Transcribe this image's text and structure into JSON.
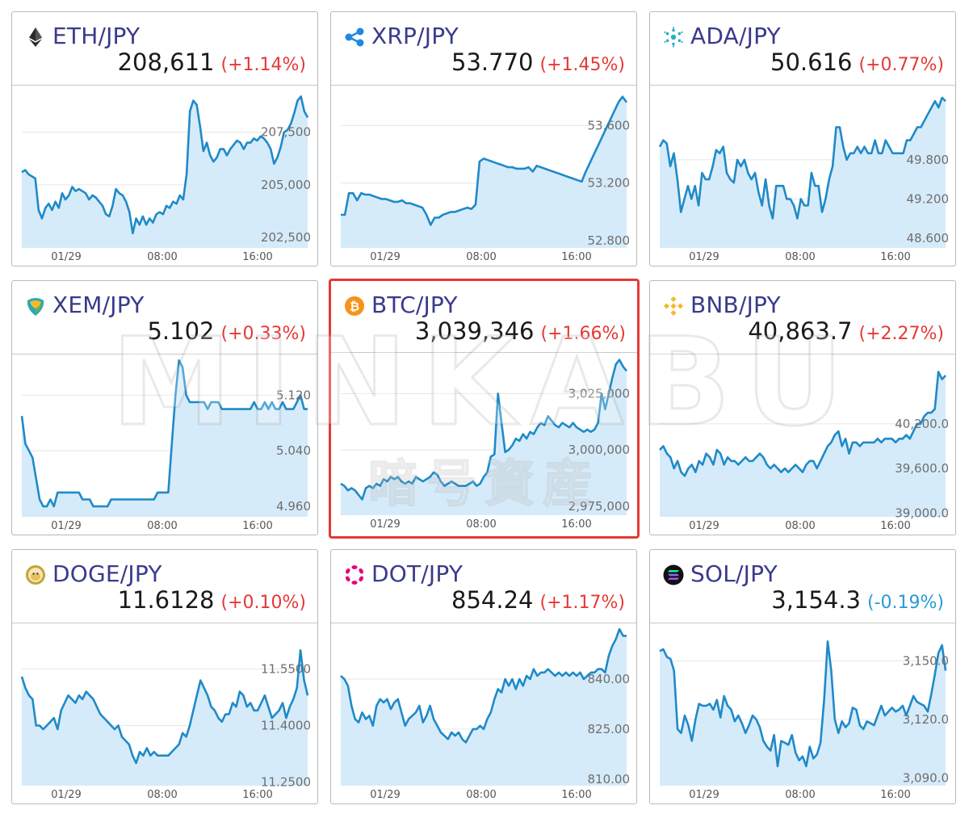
{
  "x_labels": [
    "01/29",
    "08:00",
    "16:00"
  ],
  "watermark": {
    "line1": "MINKABU",
    "line2": "暗号資産"
  },
  "colors": {
    "accent": "#3a3a8c",
    "line": "#1f8ac8",
    "fill": "#d6ebfa",
    "up": "#e53935",
    "down": "#2a9ad6",
    "highlight": "#e53935"
  },
  "chart_data": [
    {
      "type": "area",
      "pair": "ETH/JPY",
      "icon": "eth-icon",
      "price": "208,611",
      "change": "(+1.14%)",
      "direction": "up",
      "ylim": [
        202000,
        209600
      ],
      "yticks": [
        202500,
        205000,
        207500
      ],
      "ytick_labels": [
        "202,500",
        "205,000",
        "207,500"
      ],
      "values": [
        205600,
        205700,
        205500,
        205400,
        205300,
        203800,
        203400,
        203900,
        204100,
        203800,
        204200,
        203900,
        204600,
        204300,
        204500,
        204900,
        204700,
        204800,
        204700,
        204600,
        204300,
        204500,
        204400,
        204200,
        204000,
        203600,
        203500,
        204000,
        204800,
        204600,
        204500,
        204200,
        203700,
        202700,
        203400,
        203100,
        203500,
        203100,
        203400,
        203200,
        203600,
        203700,
        203600,
        204000,
        203900,
        204200,
        204100,
        204500,
        204300,
        205500,
        208500,
        209000,
        208800,
        207800,
        206600,
        207000,
        206400,
        206100,
        206300,
        206700,
        206700,
        206400,
        206700,
        206900,
        207100,
        207000,
        206700,
        207000,
        207000,
        207200,
        207100,
        207300,
        207200,
        207000,
        206700,
        206000,
        206300,
        206800,
        207500,
        207600,
        207900,
        208400,
        209000,
        209200,
        208500,
        208200
      ]
    },
    {
      "type": "area",
      "pair": "XRP/JPY",
      "icon": "xrp-icon",
      "price": "53.770",
      "change": "(+1.45%)",
      "direction": "up",
      "ylim": [
        52.75,
        53.86
      ],
      "yticks": [
        52.8,
        53.2,
        53.6
      ],
      "ytick_labels": [
        "52.800",
        "53.200",
        "53.600"
      ],
      "values": [
        52.98,
        52.98,
        53.13,
        53.13,
        53.08,
        53.13,
        53.12,
        53.12,
        53.11,
        53.1,
        53.09,
        53.09,
        53.08,
        53.07,
        53.07,
        53.08,
        53.06,
        53.06,
        53.05,
        53.04,
        53.03,
        52.98,
        52.91,
        52.96,
        52.96,
        52.98,
        52.99,
        53.0,
        53.0,
        53.01,
        53.02,
        53.03,
        53.02,
        53.05,
        53.35,
        53.37,
        53.36,
        53.35,
        53.34,
        53.33,
        53.32,
        53.31,
        53.31,
        53.3,
        53.3,
        53.3,
        53.31,
        53.28,
        53.32,
        53.31,
        53.3,
        53.29,
        53.28,
        53.27,
        53.26,
        53.25,
        53.24,
        53.23,
        53.22,
        53.21,
        53.28,
        53.34,
        53.4,
        53.46,
        53.52,
        53.58,
        53.64,
        53.7,
        53.76,
        53.8,
        53.76
      ]
    },
    {
      "type": "area",
      "pair": "ADA/JPY",
      "icon": "ada-icon",
      "price": "50.616",
      "change": "(+0.77%)",
      "direction": "up",
      "ylim": [
        48.45,
        50.9
      ],
      "yticks": [
        48.6,
        49.2,
        49.8
      ],
      "ytick_labels": [
        "48.600",
        "49.200",
        "49.800"
      ],
      "values": [
        50.0,
        50.1,
        50.05,
        49.7,
        49.9,
        49.5,
        49.0,
        49.2,
        49.4,
        49.2,
        49.4,
        49.1,
        49.6,
        49.5,
        49.5,
        49.7,
        49.95,
        49.9,
        50.0,
        49.6,
        49.5,
        49.45,
        49.8,
        49.7,
        49.8,
        49.6,
        49.5,
        49.6,
        49.3,
        49.1,
        49.5,
        49.1,
        48.9,
        49.4,
        49.4,
        49.4,
        49.2,
        49.2,
        49.1,
        48.9,
        49.2,
        49.1,
        49.1,
        49.6,
        49.4,
        49.4,
        49.0,
        49.2,
        49.5,
        49.7,
        50.3,
        50.3,
        50.0,
        49.8,
        49.9,
        49.9,
        50.0,
        49.9,
        50.0,
        49.9,
        49.9,
        50.1,
        49.9,
        49.9,
        50.1,
        50.0,
        49.9,
        49.9,
        49.9,
        49.9,
        50.1,
        50.1,
        50.2,
        50.3,
        50.3,
        50.4,
        50.5,
        50.6,
        50.7,
        50.6,
        50.75,
        50.7
      ]
    },
    {
      "type": "area",
      "pair": "XEM/JPY",
      "icon": "xem-icon",
      "price": "5.102",
      "change": "(+0.33%)",
      "direction": "up",
      "ylim": [
        4.945,
        5.175
      ],
      "yticks": [
        4.96,
        5.04,
        5.12
      ],
      "ytick_labels": [
        "4.960",
        "5.040",
        "5.120"
      ],
      "values": [
        5.09,
        5.05,
        5.04,
        5.03,
        5.0,
        4.97,
        4.96,
        4.96,
        4.97,
        4.96,
        4.98,
        4.98,
        4.98,
        4.98,
        4.98,
        4.98,
        4.98,
        4.97,
        4.97,
        4.97,
        4.96,
        4.96,
        4.96,
        4.96,
        4.96,
        4.97,
        4.97,
        4.97,
        4.97,
        4.97,
        4.97,
        4.97,
        4.97,
        4.97,
        4.97,
        4.97,
        4.97,
        4.97,
        4.98,
        4.98,
        4.98,
        4.98,
        5.05,
        5.12,
        5.17,
        5.16,
        5.12,
        5.11,
        5.11,
        5.11,
        5.11,
        5.11,
        5.1,
        5.11,
        5.11,
        5.11,
        5.1,
        5.1,
        5.1,
        5.1,
        5.1,
        5.1,
        5.1,
        5.1,
        5.1,
        5.11,
        5.1,
        5.1,
        5.11,
        5.1,
        5.11,
        5.1,
        5.1,
        5.11,
        5.1,
        5.1,
        5.1,
        5.11,
        5.12,
        5.1,
        5.1
      ]
    },
    {
      "type": "area",
      "pair": "BTC/JPY",
      "icon": "btc-icon",
      "price": "3,039,346",
      "change": "(+1.66%)",
      "direction": "up",
      "highlighted": true,
      "ylim": [
        2971000,
        3042000
      ],
      "yticks": [
        2975000,
        3000000,
        3025000
      ],
      "ytick_labels": [
        "2,975,000",
        "3,000,000",
        "3,025,000"
      ],
      "values": [
        2985000,
        2984000,
        2982000,
        2983000,
        2982000,
        2980000,
        2978000,
        2983000,
        2984000,
        2983000,
        2985000,
        2984000,
        2987000,
        2986000,
        2988000,
        2987000,
        2988000,
        2986000,
        2985000,
        2986000,
        2985000,
        2988000,
        2987000,
        2986000,
        2987000,
        2988000,
        2990000,
        2989000,
        2986000,
        2984000,
        2985000,
        2986000,
        2985000,
        2984000,
        2984000,
        2984000,
        2985000,
        2986000,
        2984000,
        2985000,
        2988000,
        2990000,
        2997000,
        2998000,
        3025000,
        3012000,
        2999000,
        3000000,
        3002000,
        3005000,
        3004000,
        3007000,
        3005000,
        3008000,
        3007000,
        3010000,
        3012000,
        3011000,
        3015000,
        3013000,
        3011000,
        3010000,
        3012000,
        3011000,
        3010000,
        3012000,
        3010000,
        3009000,
        3008000,
        3009000,
        3008000,
        3009000,
        3012000,
        3025000,
        3018000,
        3025000,
        3032000,
        3038000,
        3040000,
        3037000,
        3035000
      ]
    },
    {
      "type": "area",
      "pair": "BNB/JPY",
      "icon": "bnb-icon",
      "price": "40,863.7",
      "change": "(+2.27%)",
      "direction": "up",
      "ylim": [
        38950,
        41100
      ],
      "yticks": [
        39000,
        39600,
        40200
      ],
      "ytick_labels": [
        "39,000.0",
        "39,600.0",
        "40,200.0"
      ],
      "values": [
        39850,
        39900,
        39800,
        39750,
        39600,
        39700,
        39550,
        39500,
        39600,
        39650,
        39550,
        39700,
        39650,
        39800,
        39750,
        39650,
        39850,
        39800,
        39650,
        39750,
        39700,
        39700,
        39650,
        39700,
        39750,
        39700,
        39700,
        39750,
        39800,
        39750,
        39650,
        39600,
        39650,
        39600,
        39550,
        39600,
        39550,
        39600,
        39650,
        39600,
        39550,
        39650,
        39700,
        39700,
        39600,
        39700,
        39800,
        39900,
        39950,
        40050,
        40100,
        39900,
        40000,
        39800,
        39950,
        39950,
        39900,
        39950,
        39950,
        39950,
        39950,
        40000,
        39950,
        40000,
        40000,
        40000,
        39950,
        40000,
        40000,
        40050,
        40000,
        40100,
        40200,
        40200,
        40300,
        40350,
        40350,
        40400,
        40900,
        40800,
        40850
      ]
    },
    {
      "type": "area",
      "pair": "DOGE/JPY",
      "icon": "doge-icon",
      "price": "11.6128",
      "change": "(+0.10%)",
      "direction": "up",
      "ylim": [
        11.24,
        11.665
      ],
      "yticks": [
        11.25,
        11.4,
        11.55
      ],
      "ytick_labels": [
        "11.2500",
        "11.4000",
        "11.5500"
      ],
      "values": [
        11.53,
        11.5,
        11.48,
        11.47,
        11.4,
        11.4,
        11.39,
        11.4,
        11.41,
        11.42,
        11.39,
        11.44,
        11.46,
        11.48,
        11.47,
        11.46,
        11.48,
        11.47,
        11.49,
        11.48,
        11.47,
        11.45,
        11.43,
        11.42,
        11.41,
        11.4,
        11.39,
        11.4,
        11.37,
        11.36,
        11.35,
        11.32,
        11.3,
        11.33,
        11.32,
        11.34,
        11.32,
        11.33,
        11.32,
        11.32,
        11.32,
        11.32,
        11.33,
        11.34,
        11.35,
        11.38,
        11.37,
        11.4,
        11.44,
        11.48,
        11.52,
        11.5,
        11.48,
        11.45,
        11.44,
        11.42,
        11.41,
        11.43,
        11.43,
        11.46,
        11.45,
        11.49,
        11.48,
        11.45,
        11.46,
        11.44,
        11.44,
        11.46,
        11.48,
        11.45,
        11.42,
        11.43,
        11.44,
        11.46,
        11.42,
        11.45,
        11.47,
        11.5,
        11.6,
        11.52,
        11.48
      ]
    },
    {
      "type": "area",
      "pair": "DOT/JPY",
      "icon": "dot-icon",
      "price": "854.24",
      "change": "(+1.17%)",
      "direction": "up",
      "ylim": [
        808,
        856
      ],
      "yticks": [
        810,
        825,
        840
      ],
      "ytick_labels": [
        "810.00",
        "825.00",
        "840.00"
      ],
      "values": [
        841,
        840,
        838,
        832,
        828,
        827,
        830,
        828,
        829,
        826,
        832,
        834,
        833,
        834,
        831,
        833,
        834,
        830,
        826,
        828,
        829,
        830,
        832,
        827,
        829,
        832,
        828,
        826,
        824,
        823,
        822,
        824,
        823,
        824,
        822,
        821,
        823,
        825,
        825,
        826,
        825,
        828,
        830,
        834,
        837,
        836,
        840,
        838,
        840,
        837,
        840,
        838,
        841,
        840,
        843,
        841,
        842,
        842,
        843,
        842,
        841,
        842,
        841,
        842,
        841,
        842,
        841,
        842,
        840,
        841,
        842,
        842,
        843,
        843,
        842,
        847,
        850,
        852,
        855,
        853,
        853
      ]
    },
    {
      "type": "area",
      "pair": "SOL/JPY",
      "icon": "sol-icon",
      "price": "3,154.3",
      "change": "(-0.19%)",
      "direction": "down",
      "ylim": [
        3086,
        3168
      ],
      "yticks": [
        3090,
        3120,
        3150
      ],
      "ytick_labels": [
        "3,090.0",
        "3,120.0",
        "3,150.0"
      ],
      "values": [
        3155,
        3156,
        3152,
        3151,
        3145,
        3115,
        3113,
        3122,
        3117,
        3109,
        3120,
        3128,
        3127,
        3127,
        3128,
        3125,
        3130,
        3121,
        3132,
        3127,
        3125,
        3119,
        3122,
        3118,
        3113,
        3117,
        3122,
        3120,
        3116,
        3109,
        3106,
        3104,
        3112,
        3096,
        3109,
        3108,
        3107,
        3112,
        3103,
        3099,
        3101,
        3096,
        3106,
        3100,
        3102,
        3108,
        3130,
        3160,
        3145,
        3120,
        3113,
        3119,
        3116,
        3118,
        3126,
        3125,
        3117,
        3115,
        3119,
        3118,
        3117,
        3122,
        3127,
        3122,
        3124,
        3126,
        3124,
        3125,
        3127,
        3122,
        3127,
        3132,
        3129,
        3128,
        3127,
        3124,
        3133,
        3143,
        3154,
        3158,
        3145
      ]
    }
  ]
}
